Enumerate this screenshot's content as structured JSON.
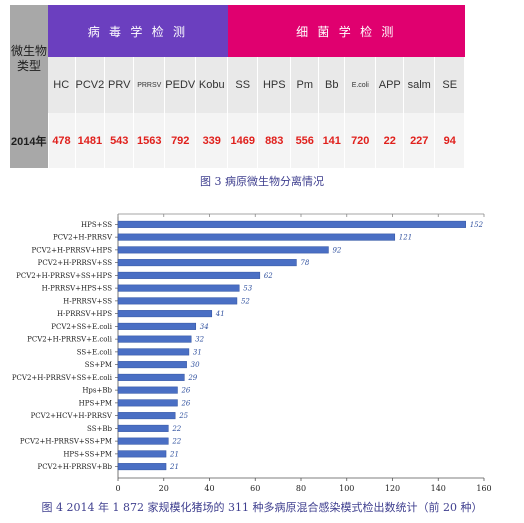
{
  "table": {
    "corner_label": "微生物类型",
    "group_virus": "病 毒 学 检 测",
    "group_bacteria": "细 菌 学 检 测",
    "row_label": "2014年",
    "columns": [
      "HC",
      "PCV2",
      "PRV",
      "PRRSV",
      "PEDV",
      "Kobu",
      "SS",
      "HPS",
      "Pm",
      "Bb",
      "E.coli",
      "APP",
      "salm",
      "SE"
    ],
    "values": [
      "478",
      "1481",
      "543",
      "1563",
      "792",
      "339",
      "1469",
      "883",
      "556",
      "141",
      "720",
      "22",
      "227",
      "94"
    ]
  },
  "caption_fig3": "图 3 病原微生物分离情况",
  "caption_fig4": "图 4 2014 年 1 872 家规模化猪场的 311 种多病原混合感染模式检出数统计（前 20 种）",
  "colors": {
    "bar": "#4a6fc4",
    "bar_edge": "#2e4f9e",
    "value_label": "#2e4f9e"
  },
  "chart_data": {
    "type": "bar",
    "orientation": "horizontal",
    "categories": [
      "HPS+SS",
      "PCV2+H-PRRSV",
      "PCV2+H-PRRSV+HPS",
      "PCV2+H-PRRSV+SS",
      "PCV2+H-PRRSV+SS+HPS",
      "H-PRRSV+HPS+SS",
      "H-PRRSV+SS",
      "H-PRRSV+HPS",
      "PCV2+SS+E.coli",
      "PCV2+H-PRRSV+E.coli",
      "SS+E.coli",
      "SS+PM",
      "PCV2+H-PRRSV+SS+E.coli",
      "Hps+Bb",
      "HPS+PM",
      "PCV2+HCV+H-PRRSV",
      "SS+Bb",
      "PCV2+H-PRRSV+SS+PM",
      "HPS+SS+PM",
      "PCV2+H-PRRSV+Bb"
    ],
    "values": [
      152,
      121,
      92,
      78,
      62,
      53,
      52,
      41,
      34,
      32,
      31,
      30,
      29,
      26,
      26,
      25,
      22,
      22,
      21,
      21
    ],
    "xlim": [
      0,
      160
    ],
    "xticks": [
      0,
      20,
      40,
      60,
      80,
      100,
      120,
      140,
      160
    ],
    "grid": false
  }
}
